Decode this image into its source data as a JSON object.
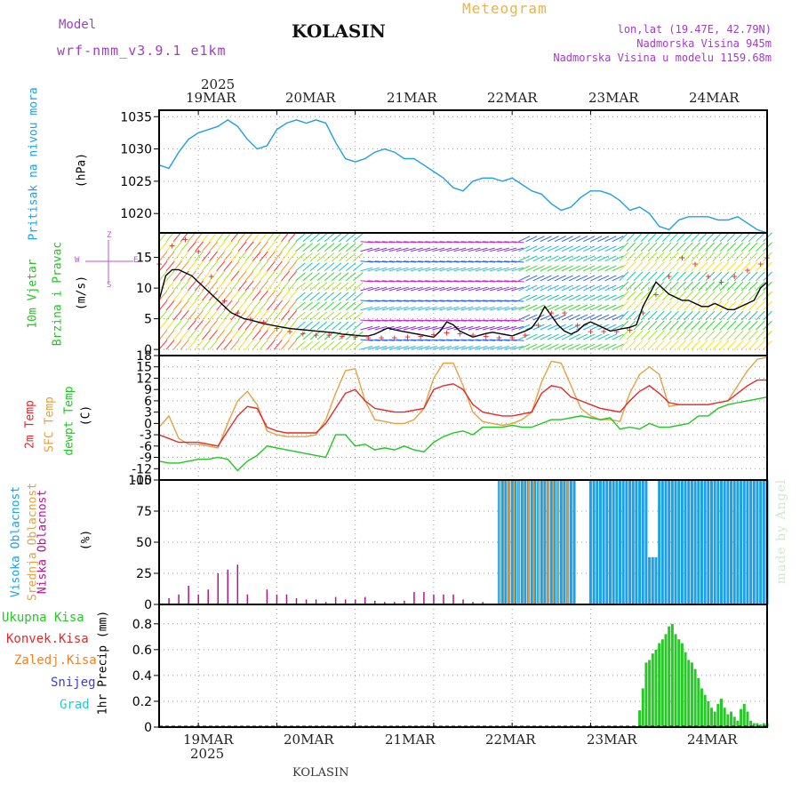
{
  "header": {
    "model_label": "Model",
    "model_name": "wrf-nmm_v3.9.1 e1km",
    "station": "KOLASIN",
    "product": "Meteogram",
    "lonlat": "lon,lat (19.47E, 42.79N)",
    "elevation": "Nadmorska Visina 945m",
    "model_elevation": "Nadmorska Visina u modelu 1159.68m",
    "watermark": "made by Angel",
    "footer_station": "KOLASIN"
  },
  "colors": {
    "pressure": "#1ea0e6",
    "temp2m": "#e62828",
    "sfc": "#e6a040",
    "dew": "#1ec81e",
    "high_cloud": "#1ea0e6",
    "mid_cloud": "#e6a040",
    "low_cloud": "#b4148c",
    "precip": "#28c828",
    "snow": "#3c3cdc",
    "hail": "#28c8c8",
    "conv": "#e62828",
    "frz": "#f08228",
    "header_purple": "#a03cc8",
    "header_orange": "#e6a040"
  },
  "time_axis": {
    "year": "2025",
    "dates": [
      "19MAR",
      "20MAR",
      "21MAR",
      "22MAR",
      "23MAR",
      "24MAR"
    ]
  },
  "panel_labels": {
    "pressure": [
      "Pritisak na nivou mora",
      "(hPa)"
    ],
    "wind": [
      "10m Vjetar",
      "Brzina i Pravac",
      "(m/s)"
    ],
    "wind_compass": {
      "top": "Z",
      "left": "W",
      "right": "E",
      "bottom": "S"
    },
    "temp": [
      "2m Temp",
      "SFC Temp",
      "dewpt Temp",
      "(C)"
    ],
    "cloud": [
      "Visoka Oblacnost",
      "Srednja Oblacnost",
      "Niska Oblacnost",
      "(%)"
    ],
    "precip_legend": [
      "Ukupna Kisa",
      "Konvek.Kisa",
      "Zaledj.Kisa",
      "Snijeg",
      "Grad"
    ],
    "precip_axis": "1hr Precip (mm)"
  },
  "chart_data": [
    {
      "type": "line",
      "name": "pressure",
      "x_unit": "hours from 18MAR 12UTC",
      "ylim": [
        1017,
        1036
      ],
      "yticks": [
        1020,
        1025,
        1030,
        1035
      ],
      "grid": true,
      "series": [
        {
          "color": "#1ea0e6",
          "x": [
            0,
            3,
            6,
            9,
            12,
            15,
            18,
            21,
            24,
            27,
            30,
            33,
            36,
            39,
            42,
            45,
            48,
            51,
            54,
            57,
            60,
            63,
            66,
            69,
            72,
            75,
            78,
            81,
            84,
            87,
            90,
            93,
            96,
            99,
            102,
            105,
            108,
            111,
            114,
            117,
            120,
            123,
            126,
            129,
            132,
            135,
            138,
            141,
            144,
            147,
            150,
            153,
            156,
            159,
            162,
            165,
            168,
            171,
            174,
            177,
            180,
            183,
            186
          ],
          "y": [
            1027.5,
            1027,
            1029.5,
            1031.5,
            1032.5,
            1033,
            1033.5,
            1034.5,
            1033.5,
            1031.5,
            1030,
            1030.5,
            1033,
            1034,
            1034.5,
            1034,
            1034.5,
            1034,
            1031,
            1028.5,
            1028,
            1028.5,
            1029.5,
            1030,
            1029.5,
            1028.5,
            1028.5,
            1027.5,
            1026.5,
            1025.5,
            1024,
            1023.5,
            1025,
            1025.5,
            1025.5,
            1025,
            1025.5,
            1024.5,
            1023.5,
            1023,
            1021.5,
            1020.5,
            1021,
            1022.5,
            1023.5,
            1023.5,
            1023,
            1022,
            1020.5,
            1021,
            1020,
            1018,
            1017.5,
            1019,
            1019.5,
            1019.5,
            1019.5,
            1019,
            1019,
            1019.5,
            1018.5,
            1017.5,
            1017
          ]
        }
      ]
    },
    {
      "type": "line",
      "name": "wind",
      "ylim": [
        -1,
        19
      ],
      "yticks": [
        0,
        5,
        10,
        15
      ],
      "grid": true,
      "series": [
        {
          "color": "#000000",
          "x": [
            0,
            2,
            4,
            6,
            8,
            10,
            12,
            14,
            16,
            18,
            20,
            22,
            24,
            26,
            28,
            30,
            32,
            34,
            36,
            38,
            40,
            42,
            44,
            46,
            48,
            50,
            52,
            54,
            56,
            58,
            60,
            62,
            64,
            66,
            68,
            70,
            72,
            74,
            76,
            78,
            80,
            82,
            84,
            86,
            88,
            90,
            92,
            94,
            96,
            98,
            100,
            102,
            104,
            106,
            108,
            110,
            112,
            114,
            116,
            118,
            120,
            122,
            124,
            126,
            128,
            130,
            132,
            134,
            136,
            138,
            140,
            142,
            144,
            146,
            148,
            150,
            152,
            154,
            156,
            158,
            160,
            162,
            164,
            166,
            168,
            170,
            172,
            174,
            176,
            178,
            180,
            182,
            184,
            186
          ],
          "y": [
            8,
            12,
            13,
            13,
            12.5,
            12,
            11,
            10,
            9,
            8,
            7,
            6,
            5.5,
            5,
            4.8,
            4.5,
            4.2,
            4,
            3.8,
            3.6,
            3.4,
            3.3,
            3.2,
            3.1,
            3,
            2.9,
            2.8,
            2.7,
            2.5,
            2.4,
            2.3,
            2.2,
            2.2,
            2.5,
            3,
            3.5,
            3.2,
            3,
            2.8,
            2.6,
            2.4,
            2.2,
            2,
            3,
            4.5,
            4,
            3,
            2.5,
            2,
            2.3,
            2.6,
            2.8,
            2.6,
            2.4,
            2.2,
            2.6,
            3,
            3.5,
            5,
            7,
            5.5,
            4,
            3,
            2.5,
            3,
            4,
            4.5,
            4,
            3.5,
            3,
            3.2,
            3.4,
            3.6,
            4,
            7,
            9,
            11,
            10,
            9,
            8.5,
            8,
            8,
            7.5,
            7,
            7,
            7.5,
            7,
            6.5,
            6.5,
            7,
            7.5,
            8,
            10,
            11
          ]
        },
        {
          "color": "#e62828",
          "x": [
            0,
            4,
            8,
            12,
            16,
            20,
            24,
            28,
            32,
            36,
            40,
            44,
            48,
            52,
            56,
            60,
            64,
            68,
            72,
            76,
            80,
            84,
            88,
            92,
            96,
            100,
            104,
            108,
            112,
            116,
            120,
            124,
            128,
            132,
            136,
            140,
            144,
            148,
            152,
            156,
            160,
            164,
            168,
            172,
            176,
            180,
            184,
            186
          ],
          "y": [
            14,
            17,
            18,
            16,
            12,
            8,
            6,
            5,
            4.5,
            3.5,
            3,
            2.6,
            2.4,
            2.4,
            2.2,
            2.1,
            2,
            2,
            2,
            2.1,
            2.2,
            2.5,
            2.8,
            2.6,
            2.4,
            2.2,
            2,
            2,
            2.4,
            4,
            6,
            6,
            4,
            3,
            3,
            3,
            3.2,
            6,
            9,
            12,
            15,
            14,
            12,
            11,
            12,
            13,
            14,
            15
          ]
        }
      ]
    },
    {
      "type": "line",
      "name": "temperature",
      "ylim": [
        -15,
        18
      ],
      "yticks": [
        -15,
        -12,
        -9,
        -6,
        -3,
        0,
        3,
        6,
        9,
        12,
        15,
        18
      ],
      "grid": true,
      "series": [
        {
          "color": "#e62828",
          "x": [
            0,
            3,
            6,
            9,
            12,
            15,
            18,
            21,
            24,
            27,
            30,
            33,
            36,
            39,
            42,
            45,
            48,
            51,
            54,
            57,
            60,
            63,
            66,
            69,
            72,
            75,
            78,
            81,
            84,
            87,
            90,
            93,
            96,
            99,
            102,
            105,
            108,
            111,
            114,
            117,
            120,
            123,
            126,
            129,
            132,
            135,
            138,
            141,
            144,
            147,
            150,
            153,
            156,
            159,
            162,
            165,
            168,
            171,
            174,
            177,
            180,
            183,
            186
          ],
          "y": [
            -3,
            -4,
            -5,
            -5,
            -5,
            -5.5,
            -6,
            -2,
            2,
            4.5,
            4,
            -1,
            -2,
            -2.5,
            -2.5,
            -2.5,
            -2.5,
            0,
            4,
            8,
            9,
            6,
            4,
            3.5,
            3,
            3,
            3.5,
            4,
            9,
            10,
            10.5,
            9,
            5,
            3,
            2.5,
            2,
            2,
            2.5,
            3,
            8,
            10,
            9.5,
            7,
            6,
            5,
            4,
            3.5,
            3,
            6,
            8.5,
            10,
            8,
            5.5,
            5,
            5,
            5,
            5,
            5.5,
            6,
            8,
            10,
            11.5,
            11.5
          ]
        },
        {
          "color": "#e6a040",
          "x": [
            0,
            3,
            6,
            9,
            12,
            15,
            18,
            21,
            24,
            27,
            30,
            33,
            36,
            39,
            42,
            45,
            48,
            51,
            54,
            57,
            60,
            63,
            66,
            69,
            72,
            75,
            78,
            81,
            84,
            87,
            90,
            93,
            96,
            99,
            102,
            105,
            108,
            111,
            114,
            117,
            120,
            123,
            126,
            129,
            132,
            135,
            138,
            141,
            144,
            147,
            150,
            153,
            156,
            159,
            162,
            165,
            168,
            171,
            174,
            177,
            180,
            183,
            186
          ],
          "y": [
            -1,
            2,
            -4,
            -5.5,
            -5.5,
            -6,
            -6.5,
            0,
            6,
            8.5,
            5,
            -2,
            -3,
            -3.5,
            -3.5,
            -3.5,
            -3,
            1,
            8,
            14,
            14.5,
            6,
            1,
            0.5,
            0,
            0,
            1,
            4,
            12,
            16,
            16,
            10,
            3,
            0.5,
            0,
            -0.5,
            0,
            1,
            3,
            11,
            16.5,
            16,
            10,
            4,
            2,
            1,
            1,
            0.5,
            8,
            13,
            15,
            13,
            4.5,
            5,
            5,
            5,
            5,
            5.5,
            6,
            10,
            14,
            17,
            17.5
          ]
        },
        {
          "color": "#1ec81e",
          "x": [
            0,
            3,
            6,
            9,
            12,
            15,
            18,
            21,
            24,
            27,
            30,
            33,
            36,
            39,
            42,
            45,
            48,
            51,
            54,
            57,
            60,
            63,
            66,
            69,
            72,
            75,
            78,
            81,
            84,
            87,
            90,
            93,
            96,
            99,
            102,
            105,
            108,
            111,
            114,
            117,
            120,
            123,
            126,
            129,
            132,
            135,
            138,
            141,
            144,
            147,
            150,
            153,
            156,
            159,
            162,
            165,
            168,
            171,
            174,
            177,
            180,
            183,
            186
          ],
          "y": [
            -10,
            -10.5,
            -10.5,
            -10,
            -9.5,
            -9.5,
            -9,
            -9.5,
            -12.5,
            -10,
            -8.5,
            -6,
            -6.5,
            -7,
            -7.5,
            -8,
            -8.5,
            -9,
            -3,
            -3,
            -6,
            -5.5,
            -7,
            -6.5,
            -7,
            -6,
            -7,
            -7.5,
            -5,
            -3.5,
            -2.5,
            -2,
            -3,
            -1,
            -1,
            -1,
            -0.5,
            -1,
            -1,
            0,
            1,
            1,
            1.5,
            2,
            1.5,
            1,
            1.5,
            -1.5,
            -1,
            -1.5,
            0,
            -1,
            -1,
            -0.5,
            0,
            2,
            2,
            4,
            5,
            5.5,
            6,
            6.5,
            7
          ]
        }
      ]
    },
    {
      "type": "bar",
      "name": "cloud_cover",
      "ylim": [
        0,
        100
      ],
      "yticks": [
        0,
        25,
        50,
        75,
        100
      ],
      "grid": true,
      "low": {
        "x": [
          3,
          6,
          9,
          12,
          15,
          18,
          21,
          24,
          27,
          33,
          36,
          39,
          42,
          45,
          48,
          51,
          54,
          57,
          60,
          63,
          66,
          69,
          72,
          75,
          78,
          81,
          84,
          87,
          90,
          93,
          96,
          99
        ],
        "y": [
          5,
          8,
          15,
          8,
          12,
          25,
          28,
          32,
          8,
          12,
          8,
          8,
          5,
          4,
          4,
          2,
          6,
          4,
          4,
          6,
          3,
          2,
          2,
          3,
          10,
          10,
          8,
          8,
          8,
          4,
          2,
          2
        ]
      },
      "high": {
        "x_start": 104,
        "x_end": 186,
        "step": 1,
        "value": 100,
        "gaps": [
          [
            128,
            131
          ]
        ],
        "drops": [
          [
            150,
            152,
            38
          ]
        ]
      },
      "mid": {
        "x_start": 104,
        "x_end": 126,
        "step": 1.5,
        "value": 100
      }
    },
    {
      "type": "bar",
      "name": "precip_1hr",
      "ylim": [
        0,
        0.95
      ],
      "yticks": [
        0,
        0.2,
        0.4,
        0.6,
        0.8
      ],
      "grid": true,
      "x": [
        147,
        148,
        149,
        150,
        151,
        152,
        153,
        154,
        155,
        156,
        157,
        158,
        159,
        160,
        161,
        162,
        163,
        164,
        165,
        166,
        167,
        168,
        169,
        170,
        171,
        172,
        173,
        174,
        175,
        176,
        177,
        178,
        179,
        180,
        181,
        182,
        183,
        184,
        185,
        186
      ],
      "values": [
        0.13,
        0.3,
        0.5,
        0.52,
        0.57,
        0.6,
        0.65,
        0.68,
        0.72,
        0.78,
        0.8,
        0.72,
        0.68,
        0.65,
        0.58,
        0.52,
        0.5,
        0.45,
        0.38,
        0.3,
        0.25,
        0.2,
        0.15,
        0.12,
        0.18,
        0.22,
        0.15,
        0.1,
        0.12,
        0.08,
        0.05,
        0.14,
        0.18,
        0.12,
        0.05,
        0.03,
        0.03,
        0.02,
        0.03,
        0.03
      ]
    }
  ]
}
